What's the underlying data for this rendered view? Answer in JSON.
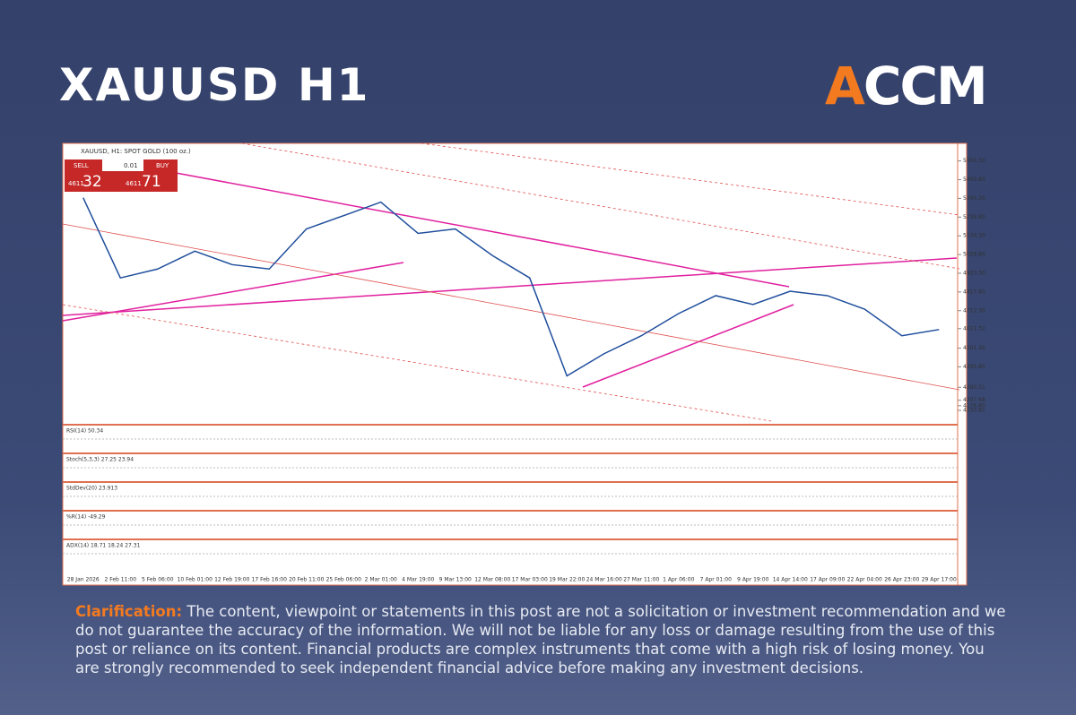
{
  "header": {
    "title": "XAUUSD H1",
    "logo": "ACCM"
  },
  "trade_panel": {
    "sell": "SELL",
    "buy": "BUY",
    "lot": "0.01",
    "sell_big": "4611",
    "sell_small": "32",
    "buy_big": "4611",
    "buy_small": "71"
  },
  "chart_data": {
    "type": "line",
    "title": "XAUUSD, H1: SPOT GOLD (100 oz.)",
    "categories": [
      "28 Jan 2026",
      "2 Feb 11:00",
      "5 Feb 06:00",
      "10 Feb 01:00",
      "12 Feb 19:00",
      "17 Feb 16:00",
      "20 Feb 11:00",
      "25 Feb 06:00",
      "2 Mar 01:00",
      "4 Mar 19:00",
      "9 Mar 13:00",
      "12 Mar 08:00",
      "17 Mar 03:00",
      "19 Mar 22:00",
      "24 Mar 16:00",
      "27 Mar 11:00",
      "1 Apr 06:00",
      "7 Apr 01:00",
      "9 Apr 19:00",
      "14 Apr 14:00",
      "17 Apr 09:00",
      "22 Apr 04:00",
      "26 Apr 23:00",
      "29 Apr 17:00"
    ],
    "values": [
      5349,
      4897,
      4947,
      5048,
      4972,
      4947,
      5173,
      5248,
      5324,
      5148,
      5173,
      5023,
      4897,
      4345,
      4470,
      4571,
      4696,
      4797,
      4747,
      4822,
      4797,
      4721,
      4571,
      4606
    ],
    "color": "#1f4e9c",
    "ylim": [
      4090,
      5630
    ],
    "yticks": [
      {
        "value": 5556.3,
        "label": "5556.30"
      },
      {
        "value": 5450.8,
        "label": "5450.80"
      },
      {
        "value": 5345.3,
        "label": "5345.30"
      },
      {
        "value": 5239.8,
        "label": "5239.80"
      },
      {
        "value": 5134.3,
        "label": "5134.30"
      },
      {
        "value": 5028.8,
        "label": "5028.80"
      },
      {
        "value": 4923.3,
        "label": "4923.30"
      },
      {
        "value": 4817.8,
        "label": "4817.80"
      },
      {
        "value": 4712.3,
        "label": "4712.30"
      },
      {
        "value": 4611.32,
        "label": "4611.32"
      },
      {
        "value": 4501.3,
        "label": "4501.30"
      },
      {
        "value": 4395.8,
        "label": "4395.80"
      },
      {
        "value": 4280.51,
        "label": "4280.51"
      },
      {
        "value": 4207.68,
        "label": "4207.68"
      },
      {
        "value": 4176.8,
        "label": "4176.80"
      },
      {
        "value": 4150.81,
        "label": "4150.81"
      }
    ]
  },
  "indicators": [
    "RSI(14) 50.34",
    "Stoch(5,3,3) 27.25 23.94",
    "StdDev(20) 23.913",
    "%R(14) -49.29",
    "ADX(14) 18.71 18.24 27.31"
  ],
  "footer": {
    "label": "Clarification:",
    "text": "The content, viewpoint or statements in this post are not a solicitation or investment recommendation and we do not guarantee the accuracy of the information. We will not be liable for any loss or damage resulting from the use of this post or reliance on its content. Financial products are complex instruments that come with a high risk of losing money. You are strongly recommended to seek independent financial advice before making any investment decisions."
  }
}
